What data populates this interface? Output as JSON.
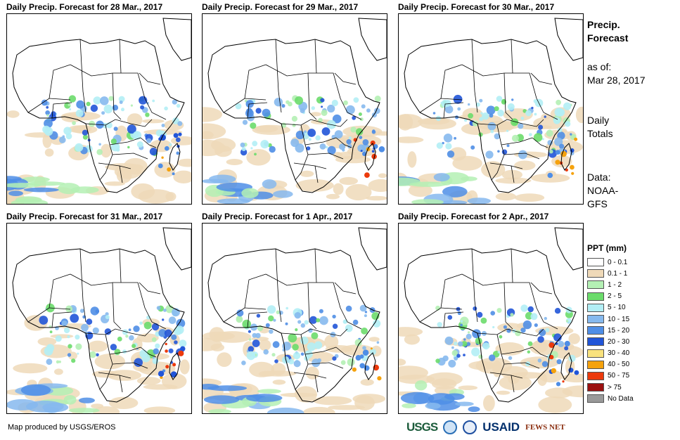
{
  "panels": [
    {
      "title": "Daily Precip. Forecast for 28 Mar., 2017"
    },
    {
      "title": "Daily Precip. Forecast for 29 Mar., 2017"
    },
    {
      "title": "Daily Precip. Forecast for 30 Mar., 2017"
    },
    {
      "title": "Daily Precip. Forecast for 31 Mar., 2017"
    },
    {
      "title": "Daily Precip. Forecast for 1 Apr., 2017"
    },
    {
      "title": "Daily Precip. Forecast for 2 Apr., 2017"
    }
  ],
  "sidebar": {
    "heading_line1": "Precip.",
    "heading_line2": "Forecast",
    "as_of_label": "as of:",
    "as_of_date": "Mar 28, 2017",
    "totals_line1": "Daily",
    "totals_line2": "Totals",
    "data_line1": "Data:",
    "data_line2": "NOAA-",
    "data_line3": "GFS"
  },
  "legend": {
    "title": "PPT (mm)",
    "items": [
      {
        "label": "0 - 0.1",
        "color": "#ffffff"
      },
      {
        "label": "0.1 - 1",
        "color": "#efd9b8"
      },
      {
        "label": "1 - 2",
        "color": "#b4f0b4"
      },
      {
        "label": "2 - 5",
        "color": "#6bdc6b"
      },
      {
        "label": "5 - 10",
        "color": "#b2eef5"
      },
      {
        "label": "10 - 15",
        "color": "#86b9ee"
      },
      {
        "label": "15 - 20",
        "color": "#4f8ee6"
      },
      {
        "label": "20 - 30",
        "color": "#2155d8"
      },
      {
        "label": "30 - 40",
        "color": "#f9e27d"
      },
      {
        "label": "40 - 50",
        "color": "#f5a20d"
      },
      {
        "label": "50 - 75",
        "color": "#ec3a0c"
      },
      {
        "label": "> 75",
        "color": "#9b1010"
      },
      {
        "label": "No Data",
        "color": "#999999"
      }
    ]
  },
  "footer": {
    "credit": "Map produced by USGS/EROS",
    "logos": {
      "usgs": "USGS",
      "usaid": "USAID",
      "fews": "FEWS NET"
    }
  }
}
